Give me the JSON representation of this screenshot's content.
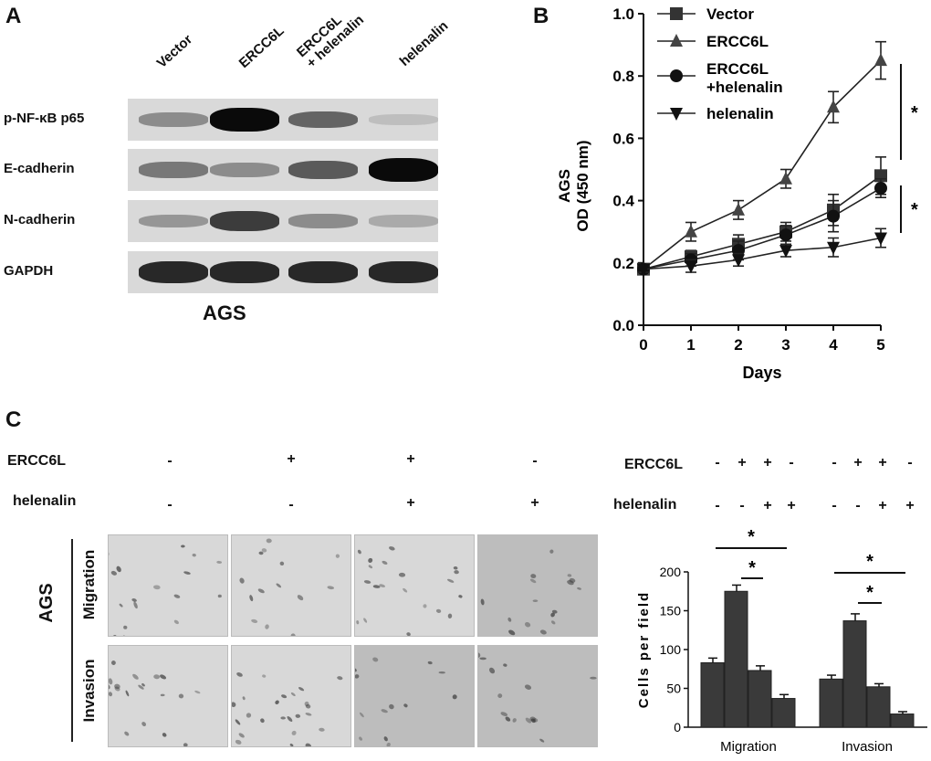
{
  "panelA": {
    "letter": "A",
    "lanes": [
      "Vector",
      "ERCC6L",
      "ERCC6L\n+ helenalin",
      "helenalin"
    ],
    "lane3_line1": "ERCC6L",
    "lane3_line2": "+ helenalin",
    "rows": [
      {
        "label": "p-NF-κB p65",
        "intensity": [
          0.35,
          1.0,
          0.55,
          0.1
        ]
      },
      {
        "label": "E-cadherin",
        "intensity": [
          0.45,
          0.35,
          0.6,
          1.0
        ]
      },
      {
        "label": "N-cadherin",
        "intensity": [
          0.3,
          0.75,
          0.35,
          0.2
        ]
      },
      {
        "label": "GAPDH",
        "intensity": [
          0.85,
          0.85,
          0.85,
          0.85
        ]
      }
    ],
    "caption": "AGS"
  },
  "panelB": {
    "letter": "B",
    "ylabel_line1": "AGS",
    "ylabel_line2": "OD (450 nm)",
    "xlabel": "Days",
    "sig_star": "*"
  },
  "panelC": {
    "letter": "C",
    "row_ercc6l": "ERCC6L",
    "row_helenalin": "helenalin",
    "ercc6l_signs": [
      "-",
      "+",
      "+",
      "-"
    ],
    "helenalin_signs": [
      "-",
      "-",
      "+",
      "+"
    ],
    "side_label": "AGS",
    "migration_label": "Migration",
    "invasion_label": "Invasion",
    "bar_ercc6l_label": "ERCC6L",
    "bar_helenalin_label": "helenalin",
    "bar_ercc6l_signs": [
      "-",
      "+",
      "+",
      "-",
      "-",
      "+",
      "+",
      "-"
    ],
    "bar_helenalin_signs": [
      "-",
      "-",
      "+",
      "+",
      "-",
      "-",
      "+",
      "+"
    ],
    "sig_star": "*"
  },
  "chart_data": [
    {
      "type": "line",
      "title": "",
      "xlabel": "Days",
      "ylabel": "AGS OD (450 nm)",
      "x": [
        0,
        1,
        2,
        3,
        4,
        5
      ],
      "xlim": [
        0,
        5
      ],
      "ylim": [
        0.0,
        1.0
      ],
      "yticks": [
        "0.0",
        "0.2",
        "0.4",
        "0.6",
        "0.8",
        "1.0"
      ],
      "xticks": [
        "0",
        "1",
        "2",
        "3",
        "4",
        "5"
      ],
      "legend_position": "top-left",
      "series": [
        {
          "name": "Vector",
          "marker": "square",
          "values": [
            0.18,
            0.22,
            0.26,
            0.3,
            0.37,
            0.48
          ],
          "errors": [
            0.01,
            0.02,
            0.03,
            0.03,
            0.05,
            0.06
          ]
        },
        {
          "name": "ERCC6L",
          "marker": "triangle-up",
          "values": [
            0.18,
            0.3,
            0.37,
            0.47,
            0.7,
            0.85
          ],
          "errors": [
            0.01,
            0.03,
            0.03,
            0.03,
            0.05,
            0.06
          ]
        },
        {
          "name": "ERCC6L\n+helenalin",
          "marker": "circle",
          "values": [
            0.18,
            0.21,
            0.24,
            0.29,
            0.35,
            0.44
          ],
          "errors": [
            0.01,
            0.02,
            0.03,
            0.03,
            0.05,
            0.03
          ]
        },
        {
          "name": "helenalin",
          "marker": "triangle-down",
          "values": [
            0.18,
            0.19,
            0.21,
            0.24,
            0.25,
            0.28
          ],
          "errors": [
            0.01,
            0.02,
            0.02,
            0.02,
            0.03,
            0.03
          ]
        }
      ],
      "significance": [
        "*",
        "*"
      ]
    },
    {
      "type": "bar",
      "title": "",
      "ylabel": "Cells per field",
      "categories": [
        "Migration",
        "Invasion"
      ],
      "ylim": [
        0,
        200
      ],
      "yticks": [
        "0",
        "50",
        "100",
        "150",
        "200"
      ],
      "groups": [
        {
          "name": "Migration",
          "values": [
            83,
            175,
            73,
            37
          ],
          "errors": [
            6,
            8,
            6,
            5
          ]
        },
        {
          "name": "Invasion",
          "values": [
            62,
            137,
            52,
            17
          ],
          "errors": [
            5,
            9,
            4,
            3
          ]
        }
      ],
      "significance": [
        "*",
        "*",
        "*",
        "*"
      ]
    }
  ]
}
